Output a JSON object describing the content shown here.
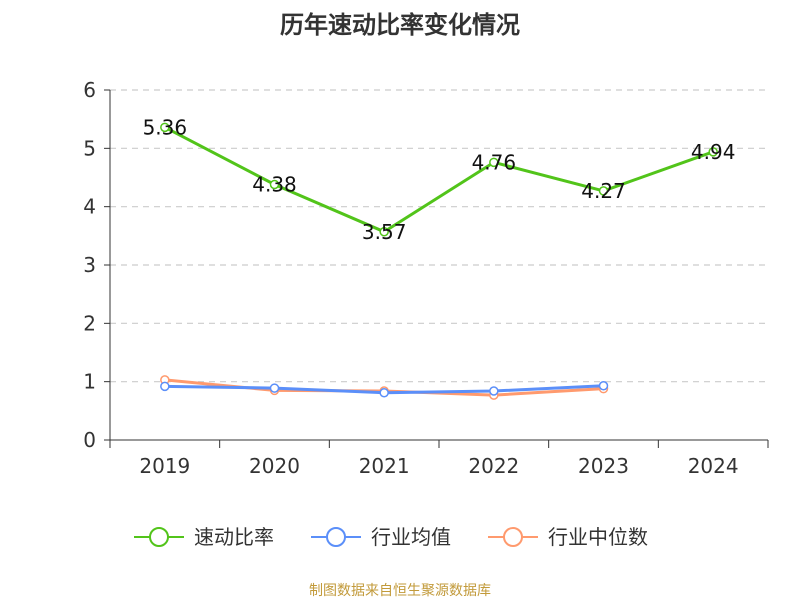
{
  "chart_data": {
    "type": "line",
    "title": "历年速动比率变化情况",
    "categories": [
      "2019",
      "2020",
      "2021",
      "2022",
      "2023",
      "2024"
    ],
    "y_ticks": [
      "0",
      "1",
      "2",
      "3",
      "4",
      "5",
      "6"
    ],
    "ylim": [
      0,
      6
    ],
    "grid": true,
    "legend_position": "bottom",
    "series": [
      {
        "name": "速动比率",
        "color": "#52c41a",
        "values": [
          5.36,
          4.38,
          3.57,
          4.76,
          4.27,
          4.94
        ],
        "labels": [
          "5.36",
          "4.38",
          "3.57",
          "4.76",
          "4.27",
          "4.94"
        ],
        "show_labels": true
      },
      {
        "name": "行业均值",
        "color": "#5b8ff9",
        "values": [
          0.92,
          0.89,
          0.81,
          0.84,
          0.93,
          null
        ],
        "show_labels": false
      },
      {
        "name": "行业中位数",
        "color": "#ff9a6e",
        "values": [
          1.03,
          0.85,
          0.84,
          0.77,
          0.88,
          null
        ],
        "show_labels": false
      }
    ]
  },
  "footer": {
    "source": "制图数据来自恒生聚源数据库"
  }
}
